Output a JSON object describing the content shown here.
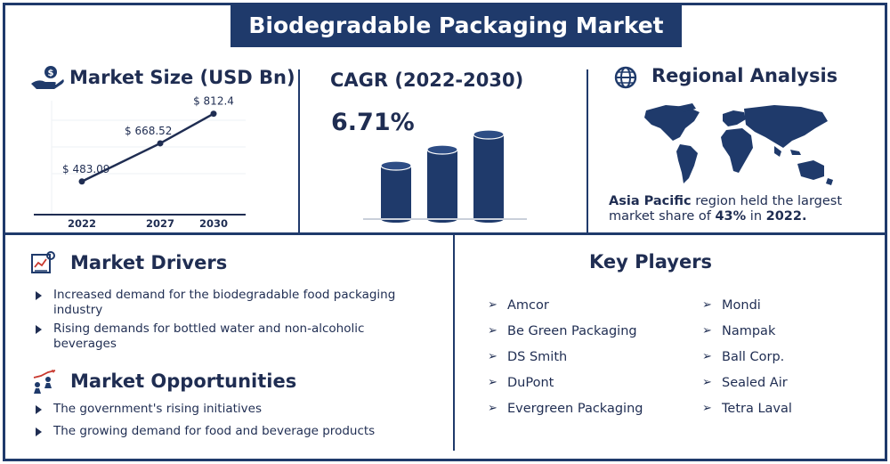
{
  "title": "Biodegradable Packaging Market",
  "market_size": {
    "title": "Market Size (USD Bn)"
  },
  "chart_data": {
    "type": "line",
    "categories": [
      "2022",
      "2027",
      "2030"
    ],
    "values": [
      483.09,
      668.52,
      812.4
    ],
    "data_labels": [
      "$ 483.09",
      "$ 668.52",
      "$ 812.4"
    ],
    "title": "Market Size (USD Bn)",
    "xlabel": "",
    "ylabel": "",
    "grid": true,
    "color": "#1f2d52"
  },
  "cagr": {
    "title": "CAGR (2022-2030)",
    "value": "6.71%",
    "bar_levels": [
      0.6,
      0.78,
      0.95
    ],
    "bar_color": "#1f3a6b"
  },
  "regional": {
    "title": "Regional Analysis",
    "text_pre": "region held the largest market share of",
    "region": "Asia Pacific",
    "share": "43%",
    "in": "in",
    "year": "2022."
  },
  "drivers": {
    "title": "Market Drivers",
    "items": [
      "Increased demand for the biodegradable food packaging industry",
      "Rising demands for bottled water and non-alcoholic beverages"
    ]
  },
  "opportunities": {
    "title": "Market Opportunities",
    "items": [
      "The government's rising initiatives",
      "The growing demand for food and beverage products"
    ]
  },
  "key_players": {
    "title": "Key Players",
    "left": [
      "Amcor",
      "Be Green Packaging",
      "DS Smith",
      "DuPont",
      "Evergreen Packaging"
    ],
    "right": [
      "Mondi",
      "Nampak",
      "Ball Corp.",
      "Sealed Air",
      "Tetra Laval"
    ]
  },
  "icons": {
    "market_size": "money-hand-icon",
    "regional": "globe-icon",
    "drivers": "analytics-board-icon",
    "opportunities": "growth-people-icon",
    "bullet": "triangle-bullet-icon",
    "player": "chevron-right-icon"
  },
  "colors": {
    "navy": "#1f3a6b",
    "text": "#1f2d52"
  }
}
